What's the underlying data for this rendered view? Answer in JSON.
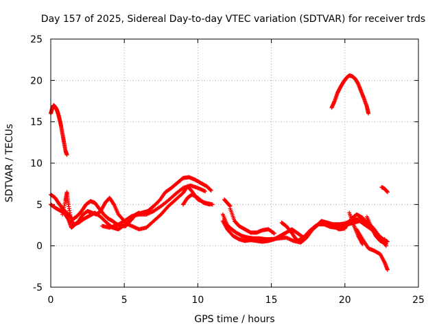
{
  "chart_data": {
    "type": "scatter",
    "title": "Day 157 of 2025, Sidereal Day-to-day VTEC variation (SDTVAR) for receiver trds",
    "xlabel": "GPS time / hours",
    "ylabel": "SDTVAR / TECUs",
    "xlim": [
      0,
      25
    ],
    "ylim": [
      -5,
      25
    ],
    "xticks": [
      0,
      5,
      10,
      15,
      20,
      25
    ],
    "yticks": [
      -5,
      0,
      5,
      10,
      15,
      20,
      25
    ],
    "xtick_labels": [
      "0",
      "5",
      "10",
      "15",
      "20",
      "25"
    ],
    "ytick_labels": [
      "-5",
      "0",
      "5",
      "10",
      "15",
      "20",
      "25"
    ],
    "grid": true,
    "marker": "plus",
    "color": "#ff0000",
    "series": [
      {
        "name": "arc-early-high",
        "x": [
          0.0,
          0.1,
          0.2,
          0.3,
          0.4,
          0.5,
          0.6,
          0.7,
          0.8,
          0.9,
          1.0,
          1.1
        ],
        "y": [
          16.0,
          16.6,
          17.0,
          16.8,
          16.5,
          16.0,
          15.3,
          14.5,
          13.5,
          12.5,
          11.5,
          11.0
        ]
      },
      {
        "name": "arc-a",
        "x": [
          0.0,
          0.3,
          0.6,
          0.9,
          1.2,
          1.5,
          1.8,
          2.1,
          2.4,
          2.7,
          3.0,
          3.3,
          3.6,
          3.9,
          4.2,
          4.5,
          4.8,
          5.1,
          5.4,
          5.7,
          6.0
        ],
        "y": [
          6.2,
          5.8,
          5.0,
          4.3,
          3.8,
          3.2,
          3.6,
          4.2,
          5.0,
          5.4,
          5.2,
          4.5,
          3.8,
          3.3,
          3.0,
          2.6,
          2.4,
          2.4,
          3.0,
          3.7,
          4.0
        ]
      },
      {
        "name": "arc-b",
        "x": [
          0.0,
          0.3,
          0.6,
          0.9,
          1.2,
          1.4,
          1.6,
          1.9,
          2.2,
          2.5,
          2.8,
          3.1,
          3.4,
          3.7,
          4.0,
          4.3,
          4.6,
          5.0
        ],
        "y": [
          5.0,
          4.6,
          4.3,
          4.0,
          3.2,
          2.2,
          2.5,
          3.0,
          3.8,
          4.2,
          4.0,
          3.8,
          4.2,
          5.2,
          5.8,
          5.0,
          3.8,
          3.0
        ]
      },
      {
        "name": "arc-c",
        "x": [
          0.8,
          1.0,
          1.1,
          1.2,
          1.4,
          1.6,
          1.9,
          2.2,
          2.6,
          3.0,
          3.4,
          3.8,
          4.2,
          4.6,
          5.0,
          5.4,
          5.8,
          6.2,
          6.6,
          7.0,
          7.4,
          7.8,
          8.2,
          8.6,
          9.0,
          9.4,
          9.8,
          10.2,
          10.6,
          10.9
        ],
        "y": [
          3.8,
          5.5,
          6.5,
          5.0,
          3.0,
          2.6,
          2.8,
          3.2,
          3.6,
          4.0,
          3.5,
          2.8,
          2.2,
          2.0,
          2.5,
          3.0,
          3.8,
          4.0,
          4.2,
          4.8,
          5.5,
          6.5,
          7.0,
          7.6,
          8.2,
          8.3,
          8.0,
          7.6,
          7.2,
          6.7
        ]
      },
      {
        "name": "arc-d",
        "x": [
          3.5,
          4.0,
          4.5,
          5.0,
          5.5,
          6.0,
          6.5,
          7.0,
          7.5,
          8.0,
          8.5,
          9.0,
          9.5,
          10.0,
          10.5
        ],
        "y": [
          2.4,
          2.2,
          2.5,
          3.0,
          3.6,
          3.8,
          3.8,
          4.2,
          4.8,
          5.5,
          6.3,
          7.0,
          7.3,
          7.0,
          6.6
        ]
      },
      {
        "name": "arc-e",
        "x": [
          5.0,
          5.5,
          6.0,
          6.5,
          7.0,
          7.5,
          8.0,
          8.5,
          9.0,
          9.3,
          9.6,
          10.0,
          10.5,
          11.0
        ],
        "y": [
          2.8,
          2.4,
          2.0,
          2.2,
          3.0,
          3.8,
          4.8,
          5.6,
          6.4,
          7.2,
          6.6,
          5.6,
          5.2,
          5.0
        ]
      },
      {
        "name": "arc-f",
        "x": [
          9.0,
          9.3,
          9.6,
          10.0,
          10.4,
          10.8
        ],
        "y": [
          5.0,
          5.8,
          6.2,
          5.8,
          5.2,
          5.0
        ]
      },
      {
        "name": "arc-g",
        "x": [
          11.7,
          12.0,
          12.3,
          12.6,
          13.0,
          13.4,
          13.8,
          14.2,
          14.6,
          15.0,
          15.5,
          16.0,
          16.5,
          17.0,
          17.4,
          17.8,
          18.2,
          18.6,
          19.0,
          19.4,
          19.8,
          20.2,
          20.6,
          21.0,
          21.4,
          21.8,
          22.2,
          22.6,
          22.9
        ],
        "y": [
          3.8,
          2.5,
          2.0,
          1.6,
          1.2,
          1.0,
          0.9,
          0.9,
          0.8,
          0.8,
          0.9,
          1.0,
          0.6,
          0.4,
          1.0,
          2.0,
          2.6,
          2.6,
          2.3,
          2.2,
          2.3,
          2.6,
          2.8,
          3.0,
          2.5,
          2.0,
          1.4,
          0.8,
          0.5
        ]
      },
      {
        "name": "arc-h",
        "x": [
          11.7,
          12.0,
          12.4,
          12.8,
          13.2,
          13.6,
          14.0,
          14.4,
          14.8,
          15.2,
          15.6,
          16.0,
          16.4,
          16.8,
          17.2,
          17.6,
          18.0,
          18.4,
          18.8,
          19.2,
          19.6,
          20.0,
          20.4,
          20.8,
          21.2,
          21.6,
          22.0,
          22.4,
          22.8
        ],
        "y": [
          3.0,
          2.0,
          1.2,
          0.8,
          0.6,
          0.7,
          0.6,
          0.5,
          0.6,
          0.8,
          1.2,
          1.6,
          2.0,
          1.5,
          1.0,
          1.6,
          2.3,
          3.0,
          2.8,
          2.4,
          2.0,
          2.1,
          3.2,
          3.8,
          3.4,
          2.6,
          1.6,
          0.6,
          0.2
        ]
      },
      {
        "name": "arc-i",
        "x": [
          11.8,
          12.0,
          12.2
        ],
        "y": [
          5.6,
          5.2,
          4.8
        ]
      },
      {
        "name": "arc-j",
        "x": [
          12.2,
          12.5,
          12.8,
          13.2,
          13.6,
          14.0,
          14.4,
          14.8,
          15.2
        ],
        "y": [
          4.5,
          3.0,
          2.4,
          2.0,
          1.6,
          1.6,
          1.9,
          2.0,
          1.5
        ]
      },
      {
        "name": "arc-k",
        "x": [
          15.7,
          16.0,
          16.3,
          16.6,
          16.8,
          17.0,
          17.3,
          17.6,
          18.0,
          18.4,
          18.8,
          19.2,
          19.6,
          20.0,
          20.4,
          20.8,
          21.2,
          21.6,
          22.0,
          22.4,
          22.8
        ],
        "y": [
          2.8,
          2.4,
          1.8,
          1.0,
          0.6,
          0.8,
          1.2,
          1.8,
          2.4,
          2.8,
          2.8,
          2.6,
          2.6,
          2.7,
          3.0,
          3.2,
          3.1,
          2.8,
          2.0,
          1.0,
          0.0
        ]
      },
      {
        "name": "arc-l",
        "x": [
          20.8,
          21.2,
          21.6,
          22.0,
          22.4,
          22.7,
          22.9
        ],
        "y": [
          2.0,
          0.8,
          -0.3,
          -0.6,
          -1.0,
          -2.0,
          -2.9
        ]
      },
      {
        "name": "arc-m",
        "x": [
          20.3,
          20.6,
          20.9,
          21.2
        ],
        "y": [
          4.0,
          2.5,
          1.2,
          0.2
        ]
      },
      {
        "name": "arc-n",
        "x": [
          21.5,
          21.8,
          22.1,
          22.4,
          22.7
        ],
        "y": [
          3.5,
          2.2,
          1.2,
          0.6,
          0.8
        ]
      },
      {
        "name": "arc-late-high",
        "x": [
          19.1,
          19.3,
          19.5,
          19.7,
          19.9,
          20.1,
          20.3,
          20.5,
          20.7,
          20.9,
          21.1,
          21.3,
          21.5,
          21.6
        ],
        "y": [
          16.7,
          17.5,
          18.5,
          19.2,
          19.8,
          20.3,
          20.6,
          20.5,
          20.2,
          19.6,
          18.7,
          17.8,
          16.8,
          16.0
        ]
      },
      {
        "name": "arc-late-small",
        "x": [
          22.5,
          22.7,
          22.9
        ],
        "y": [
          7.1,
          6.9,
          6.5
        ]
      }
    ]
  }
}
